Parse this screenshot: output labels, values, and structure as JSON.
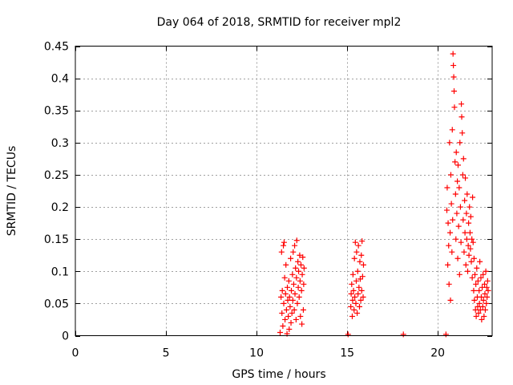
{
  "chart_data": {
    "type": "scatter",
    "title": "Day 064 of 2018, SRMTID for receiver mpl2",
    "xlabel": "GPS time / hours",
    "ylabel": "SRMTID / TECUs",
    "xlim": [
      0,
      23
    ],
    "ylim": [
      0,
      0.45
    ],
    "grid": true,
    "marker": "+",
    "color": "#ff0000",
    "x_ticks": [
      0,
      5,
      10,
      15,
      20
    ],
    "x_tick_labels": [
      "0",
      "5",
      "10",
      "15",
      "20"
    ],
    "y_ticks": [
      0,
      0.05,
      0.1,
      0.15,
      0.2,
      0.25,
      0.3,
      0.35,
      0.4,
      0.45
    ],
    "y_tick_labels": [
      "0",
      "0.05",
      "0.1",
      "0.15",
      "0.2",
      "0.25",
      "0.3",
      "0.35",
      "0.4",
      "0.45"
    ],
    "series": [
      {
        "name": "SRMTID",
        "points": [
          [
            11.3,
            0.005
          ],
          [
            11.35,
            0.06
          ],
          [
            11.38,
            0.13
          ],
          [
            11.4,
            0.035
          ],
          [
            11.42,
            0.07
          ],
          [
            11.45,
            0.015
          ],
          [
            11.48,
            0.14
          ],
          [
            11.5,
            0.05
          ],
          [
            11.52,
            0.145
          ],
          [
            11.55,
            0.09
          ],
          [
            11.57,
            0.025
          ],
          [
            11.6,
            0.065
          ],
          [
            11.62,
            0.11
          ],
          [
            11.65,
            0.04
          ],
          [
            11.68,
            0.003
          ],
          [
            11.7,
            0.075
          ],
          [
            11.72,
            0.055
          ],
          [
            11.75,
            0.03
          ],
          [
            11.78,
            0.085
          ],
          [
            11.8,
            0.01
          ],
          [
            11.82,
            0.06
          ],
          [
            11.85,
            0.045
          ],
          [
            11.88,
            0.12
          ],
          [
            11.9,
            0.02
          ],
          [
            11.92,
            0.07
          ],
          [
            11.95,
            0.035
          ],
          [
            11.98,
            0.095
          ],
          [
            12.0,
            0.055
          ],
          [
            12.02,
            0.13
          ],
          [
            12.05,
            0.08
          ],
          [
            12.08,
            0.04
          ],
          [
            12.1,
            0.14
          ],
          [
            12.12,
            0.065
          ],
          [
            12.15,
            0.105
          ],
          [
            12.18,
            0.025
          ],
          [
            12.2,
            0.09
          ],
          [
            12.22,
            0.148
          ],
          [
            12.25,
            0.05
          ],
          [
            12.28,
            0.115
          ],
          [
            12.3,
            0.075
          ],
          [
            12.32,
            0.1
          ],
          [
            12.35,
            0.06
          ],
          [
            12.38,
            0.125
          ],
          [
            12.4,
            0.085
          ],
          [
            12.42,
            0.03
          ],
          [
            12.45,
            0.11
          ],
          [
            12.48,
            0.07
          ],
          [
            12.5,
            0.018
          ],
          [
            12.52,
            0.095
          ],
          [
            12.55,
            0.122
          ],
          [
            12.58,
            0.04
          ],
          [
            12.6,
            0.08
          ],
          [
            12.62,
            0.105
          ],
          [
            15.05,
            0.002
          ],
          [
            15.2,
            0.045
          ],
          [
            15.22,
            0.065
          ],
          [
            15.25,
            0.08
          ],
          [
            15.28,
            0.03
          ],
          [
            15.3,
            0.055
          ],
          [
            15.32,
            0.095
          ],
          [
            15.35,
            0.07
          ],
          [
            15.38,
            0.04
          ],
          [
            15.4,
            0.12
          ],
          [
            15.42,
            0.06
          ],
          [
            15.45,
            0.145
          ],
          [
            15.48,
            0.05
          ],
          [
            15.5,
            0.085
          ],
          [
            15.52,
            0.13
          ],
          [
            15.55,
            0.035
          ],
          [
            15.58,
            0.1
          ],
          [
            15.6,
            0.065
          ],
          [
            15.62,
            0.14
          ],
          [
            15.65,
            0.075
          ],
          [
            15.68,
            0.045
          ],
          [
            15.7,
            0.115
          ],
          [
            15.72,
            0.088
          ],
          [
            15.75,
            0.055
          ],
          [
            15.78,
            0.125
          ],
          [
            15.8,
            0.07
          ],
          [
            15.82,
            0.147
          ],
          [
            15.85,
            0.092
          ],
          [
            15.88,
            0.06
          ],
          [
            15.9,
            0.11
          ],
          [
            18.1,
            0.002
          ],
          [
            20.45,
            0.002
          ],
          [
            20.5,
            0.195
          ],
          [
            20.52,
            0.23
          ],
          [
            20.55,
            0.11
          ],
          [
            20.57,
            0.175
          ],
          [
            20.6,
            0.14
          ],
          [
            20.62,
            0.08
          ],
          [
            20.65,
            0.3
          ],
          [
            20.68,
            0.16
          ],
          [
            20.7,
            0.055
          ],
          [
            20.72,
            0.25
          ],
          [
            20.75,
            0.205
          ],
          [
            20.78,
            0.13
          ],
          [
            20.8,
            0.32
          ],
          [
            20.82,
            0.18
          ],
          [
            20.84,
            0.438
          ],
          [
            20.86,
            0.42
          ],
          [
            20.88,
            0.402
          ],
          [
            20.9,
            0.38
          ],
          [
            20.92,
            0.355
          ],
          [
            20.95,
            0.27
          ],
          [
            20.98,
            0.22
          ],
          [
            21.0,
            0.15
          ],
          [
            21.02,
            0.285
          ],
          [
            21.05,
            0.19
          ],
          [
            21.08,
            0.24
          ],
          [
            21.1,
            0.12
          ],
          [
            21.12,
            0.265
          ],
          [
            21.15,
            0.17
          ],
          [
            21.18,
            0.23
          ],
          [
            21.2,
            0.095
          ],
          [
            21.22,
            0.3
          ],
          [
            21.25,
            0.2
          ],
          [
            21.28,
            0.145
          ],
          [
            21.3,
            0.36
          ],
          [
            21.32,
            0.34
          ],
          [
            21.35,
            0.315
          ],
          [
            21.38,
            0.25
          ],
          [
            21.4,
            0.18
          ],
          [
            21.42,
            0.275
          ],
          [
            21.45,
            0.13
          ],
          [
            21.48,
            0.21
          ],
          [
            21.5,
            0.16
          ],
          [
            21.52,
            0.245
          ],
          [
            21.55,
            0.11
          ],
          [
            21.58,
            0.19
          ],
          [
            21.6,
            0.15
          ],
          [
            21.62,
            0.22
          ],
          [
            21.65,
            0.1
          ],
          [
            21.68,
            0.14
          ],
          [
            21.7,
            0.175
          ],
          [
            21.72,
            0.125
          ],
          [
            21.75,
            0.2
          ],
          [
            21.78,
            0.16
          ],
          [
            21.8,
            0.135
          ],
          [
            21.82,
            0.185
          ],
          [
            21.85,
            0.115
          ],
          [
            21.88,
            0.15
          ],
          [
            21.9,
            0.09
          ],
          [
            21.92,
            0.215
          ],
          [
            21.95,
            0.145
          ],
          [
            21.98,
            0.07
          ],
          [
            22.0,
            0.12
          ],
          [
            22.02,
            0.055
          ],
          [
            22.05,
            0.095
          ],
          [
            22.08,
            0.04
          ],
          [
            22.1,
            0.08
          ],
          [
            22.12,
            0.03
          ],
          [
            22.15,
            0.105
          ],
          [
            22.18,
            0.06
          ],
          [
            22.2,
            0.045
          ],
          [
            22.22,
            0.085
          ],
          [
            22.25,
            0.035
          ],
          [
            22.28,
            0.07
          ],
          [
            22.3,
            0.05
          ],
          [
            22.32,
            0.115
          ],
          [
            22.35,
            0.04
          ],
          [
            22.38,
            0.09
          ],
          [
            22.4,
            0.06
          ],
          [
            22.42,
            0.025
          ],
          [
            22.45,
            0.075
          ],
          [
            22.48,
            0.045
          ],
          [
            22.5,
            0.095
          ],
          [
            22.52,
            0.055
          ],
          [
            22.55,
            0.03
          ],
          [
            22.58,
            0.08
          ],
          [
            22.6,
            0.065
          ],
          [
            22.62,
            0.04
          ],
          [
            22.65,
            0.1
          ],
          [
            22.68,
            0.05
          ],
          [
            22.7,
            0.075
          ],
          [
            22.72,
            0.06
          ],
          [
            22.75,
            0.085
          ],
          [
            22.78,
            0.07
          ]
        ]
      }
    ]
  }
}
